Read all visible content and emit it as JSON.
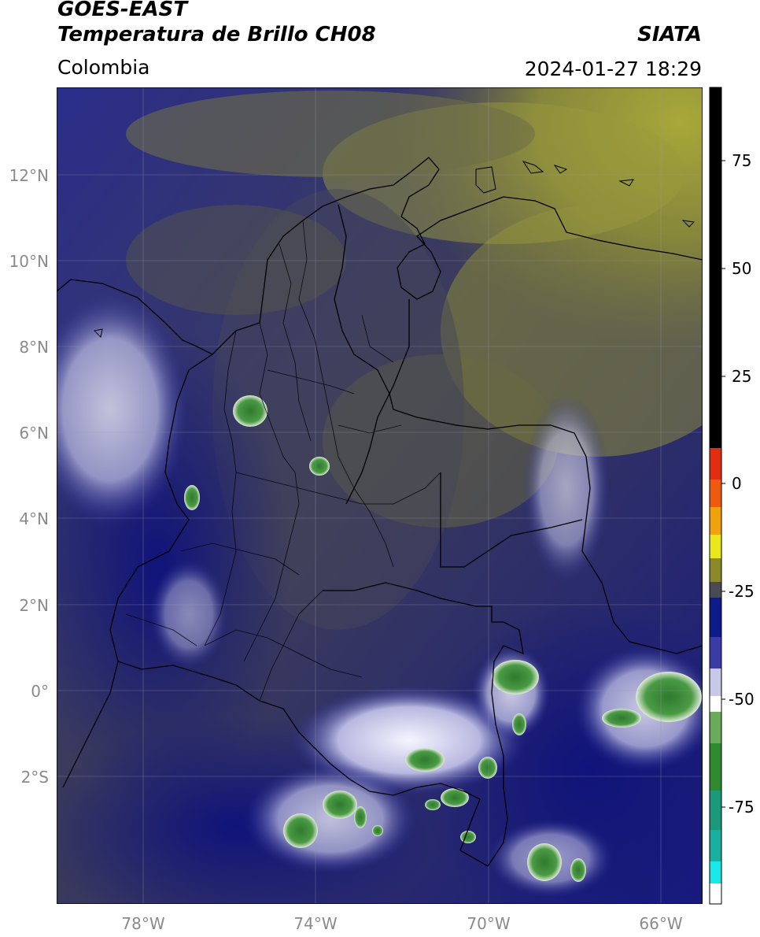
{
  "header": {
    "line1": "GOES-EAST",
    "line2": "Temperatura de Brillo CH08",
    "brand": "SIATA",
    "region": "Colombia",
    "timestamp": "2024-01-27 18:29"
  },
  "axes": {
    "lat_labels": [
      "12°N",
      "10°N",
      "8°N",
      "6°N",
      "4°N",
      "2°N",
      "0°",
      "2°S"
    ],
    "lon_labels": [
      "78°W",
      "74°W",
      "70°W",
      "66°W"
    ]
  },
  "colorbar": {
    "ticks": [
      "75",
      "50",
      "25",
      "0",
      "-25",
      "-50",
      "-75"
    ],
    "colors": {
      "black": "#000000",
      "red": "#e32d10",
      "orange": "#f08a0b",
      "yellow": "#e8e81a",
      "olive": "#8a8a2a",
      "gray": "#4a4a55",
      "navy": "#0d1a8a",
      "lavender": "#c8c8e8",
      "white": "#ffffff",
      "green": "#2f8a2f",
      "teal": "#1ab0a0",
      "cyan": "#1ae8e8"
    }
  },
  "colors": {
    "olive_haze": "#7f7f3c",
    "dark_gray": "#3c3c5a",
    "navy": "#17197e",
    "cloud_white": "#e0e0f0",
    "cold_green": "#3f8d3a"
  }
}
